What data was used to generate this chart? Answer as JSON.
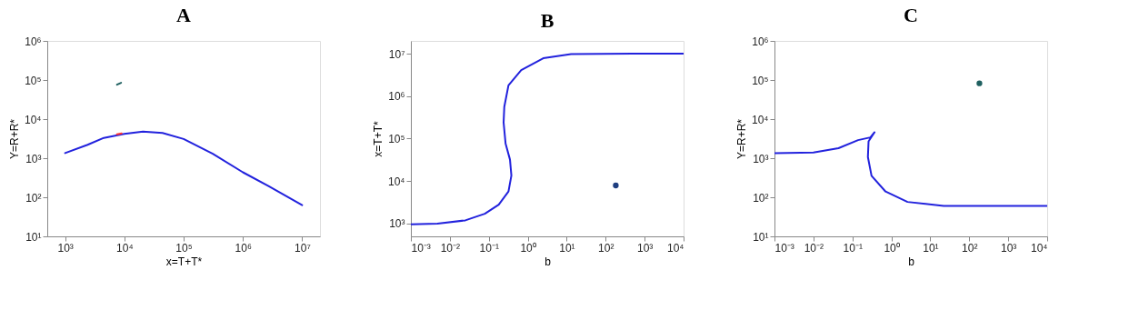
{
  "chart_data": [
    {
      "type": "line",
      "title": "A",
      "xlabel": "x=T+T*",
      "ylabel": "Y=R+R*",
      "log": "xy",
      "grid": false,
      "xlim": [
        500,
        20000000
      ],
      "ylim": [
        10,
        1000000
      ],
      "xticks": [
        {
          "value": 1000,
          "label": "10³"
        },
        {
          "value": 10000,
          "label": "10⁴"
        },
        {
          "value": 100000,
          "label": "10⁵"
        },
        {
          "value": 1000000,
          "label": "10⁶"
        },
        {
          "value": 10000000,
          "label": "10⁷"
        }
      ],
      "yticks": [
        {
          "value": 10,
          "label": "10¹"
        },
        {
          "value": 100,
          "label": "10²"
        },
        {
          "value": 1000,
          "label": "10³"
        },
        {
          "value": 10000,
          "label": "10⁴"
        },
        {
          "value": 100000,
          "label": "10⁵"
        },
        {
          "value": 1000000,
          "label": "10⁶"
        }
      ],
      "series": [
        {
          "type": "line",
          "color": "#2222dd",
          "x": [
            1000,
            2400,
            4500,
            10000,
            20600,
            44000,
            100000,
            310000,
            1000000,
            2700000,
            10000000
          ],
          "values": [
            1350,
            2200,
            3300,
            4200,
            4800,
            4400,
            3100,
            1300,
            436,
            195,
            63
          ]
        },
        {
          "type": "line",
          "color": "#ff3333",
          "x": [
            7500,
            9000
          ],
          "values": [
            4100,
            4300
          ]
        },
        {
          "type": "line",
          "color": "#1f6060",
          "x": [
            7500,
            8800
          ],
          "values": [
            76000,
            85000
          ]
        }
      ]
    },
    {
      "type": "line",
      "title": "B",
      "xlabel": "b",
      "ylabel": "x=T+T*",
      "log": "xy",
      "grid": false,
      "xlim": [
        0.001,
        10000
      ],
      "ylim": [
        500,
        20000000
      ],
      "xticks": [
        {
          "value": 0.001,
          "label": "10⁻³"
        },
        {
          "value": 0.01,
          "label": "10⁻²"
        },
        {
          "value": 0.1,
          "label": "10⁻¹"
        },
        {
          "value": 1,
          "label": "10⁰"
        },
        {
          "value": 10,
          "label": "10¹"
        },
        {
          "value": 100,
          "label": "10²"
        },
        {
          "value": 1000,
          "label": "10³"
        },
        {
          "value": 10000,
          "label": "10⁴"
        }
      ],
      "yticks": [
        {
          "value": 1000,
          "label": "10³"
        },
        {
          "value": 10000,
          "label": "10⁴"
        },
        {
          "value": 100000,
          "label": "10⁵"
        },
        {
          "value": 1000000,
          "label": "10⁶"
        },
        {
          "value": 10000000,
          "label": "10⁷"
        }
      ],
      "series": [
        {
          "type": "line",
          "color": "#2222dd",
          "x": [
            0.001,
            0.0048,
            0.025,
            0.079,
            0.18,
            0.32,
            0.38,
            0.35,
            0.27,
            0.24,
            0.25,
            0.32,
            0.68,
            2.5,
            13,
            490,
            10000
          ],
          "values": [
            955,
            1000,
            1190,
            1700,
            2800,
            5700,
            13500,
            32000,
            76000,
            240000,
            560000,
            1800000,
            4100000,
            7800000,
            9800000,
            10000000,
            10000000
          ]
        },
        {
          "type": "scatter",
          "marker": "circle",
          "color": "#1f3f80",
          "x": [
            182
          ],
          "values": [
            7900
          ]
        }
      ]
    },
    {
      "type": "line",
      "title": "C",
      "xlabel": "b",
      "ylabel": "Y=R+R*",
      "log": "xy",
      "grid": false,
      "xlim": [
        0.001,
        10000
      ],
      "ylim": [
        10,
        1000000
      ],
      "xticks": [
        {
          "value": 0.001,
          "label": "10⁻³"
        },
        {
          "value": 0.01,
          "label": "10⁻²"
        },
        {
          "value": 0.1,
          "label": "10⁻¹"
        },
        {
          "value": 1,
          "label": "10⁰"
        },
        {
          "value": 10,
          "label": "10¹"
        },
        {
          "value": 100,
          "label": "10²"
        },
        {
          "value": 1000,
          "label": "10³"
        },
        {
          "value": 10000,
          "label": "10⁴"
        }
      ],
      "yticks": [
        {
          "value": 10,
          "label": "10¹"
        },
        {
          "value": 100,
          "label": "10²"
        },
        {
          "value": 1000,
          "label": "10³"
        },
        {
          "value": 10000,
          "label": "10⁴"
        },
        {
          "value": 100000,
          "label": "10⁵"
        },
        {
          "value": 1000000,
          "label": "10⁶"
        }
      ],
      "series": [
        {
          "type": "line",
          "color": "#2222dd",
          "x": [
            0.001,
            0.01,
            0.044,
            0.14,
            0.29,
            0.37,
            0.26,
            0.25,
            0.31,
            0.71,
            2.6,
            22,
            10000
          ],
          "values": [
            1350,
            1400,
            1800,
            2900,
            3400,
            4600,
            2700,
            1070,
            355,
            140,
            76,
            60,
            60
          ]
        },
        {
          "type": "scatter",
          "marker": "circle",
          "color": "#1f6060",
          "x": [
            182
          ],
          "values": [
            82000
          ]
        }
      ]
    }
  ]
}
